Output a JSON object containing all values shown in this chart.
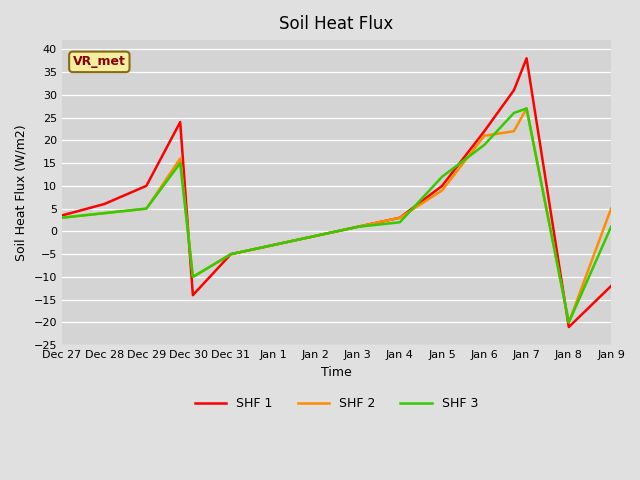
{
  "title": "Soil Heat Flux",
  "xlabel": "Time",
  "ylabel": "Soil Heat Flux (W/m2)",
  "xlim": [
    0,
    13
  ],
  "ylim": [
    -25,
    42
  ],
  "yticks": [
    -25,
    -20,
    -15,
    -10,
    -5,
    0,
    5,
    10,
    15,
    20,
    25,
    30,
    35,
    40
  ],
  "xtick_labels": [
    "Dec 27",
    "Dec 28",
    "Dec 29",
    "Dec 30",
    "Dec 31",
    "Jan 1",
    "Jan 2",
    "Jan 3",
    "Jan 4",
    "Jan 5",
    "Jan 6",
    "Jan 7",
    "Jan 8",
    "Jan 9"
  ],
  "watermark": "VR_met",
  "series": {
    "SHF 1": {
      "color": "#ff0000",
      "x": [
        0,
        1,
        2,
        2.8,
        3.1,
        4,
        5,
        6,
        7,
        8,
        9,
        10,
        10.7,
        11.0,
        12,
        13
      ],
      "y": [
        3.5,
        6,
        10,
        24,
        -14,
        -5,
        -3,
        -1,
        1,
        3,
        10,
        22,
        31,
        38,
        -21,
        -12
      ]
    },
    "SHF 2": {
      "color": "#ff8c00",
      "x": [
        0,
        1,
        2,
        2.8,
        3.1,
        4,
        5,
        6,
        7,
        8,
        9,
        10,
        10.7,
        11.0,
        12,
        13
      ],
      "y": [
        3,
        4,
        5,
        16,
        -10,
        -5,
        -3,
        -1,
        1,
        3,
        9,
        21,
        22,
        27,
        -20,
        5
      ]
    },
    "SHF 3": {
      "color": "#33cc00",
      "x": [
        0,
        1,
        2,
        2.8,
        3.1,
        4,
        5,
        6,
        7,
        8,
        9,
        10,
        10.7,
        11.0,
        12,
        13
      ],
      "y": [
        3,
        4,
        5,
        15,
        -10,
        -5,
        -3,
        -1,
        1,
        2,
        12,
        19,
        26,
        27,
        -20,
        1
      ]
    }
  }
}
